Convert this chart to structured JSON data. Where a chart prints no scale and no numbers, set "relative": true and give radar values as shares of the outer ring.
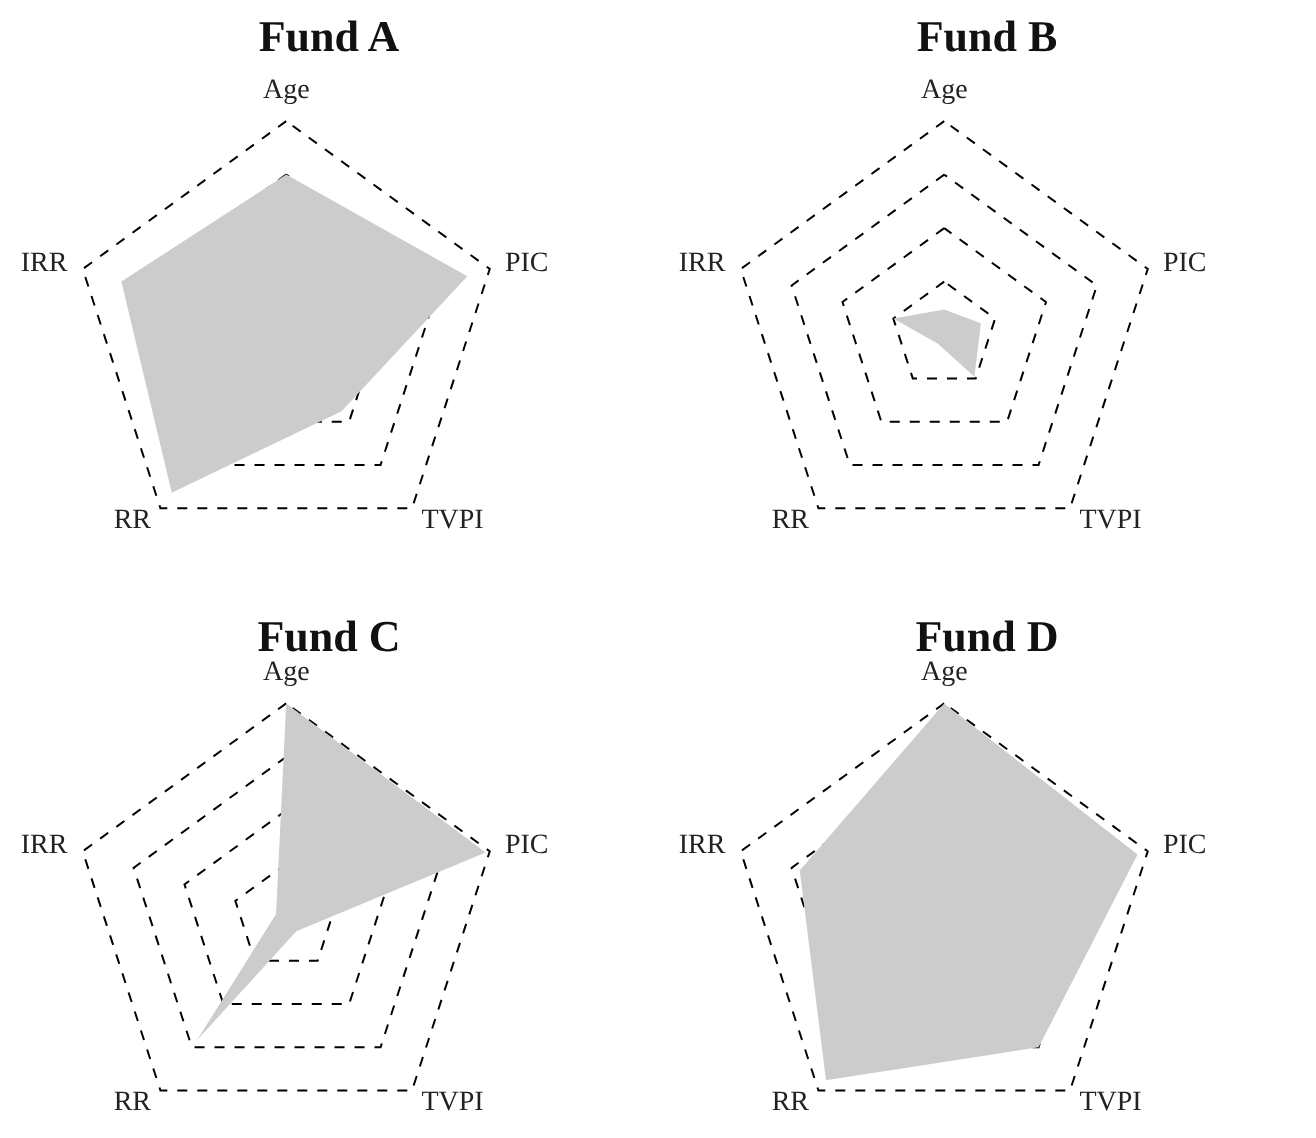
{
  "chart_data": [
    {
      "type": "radar",
      "title": "Fund A",
      "categories": [
        "Age",
        "PIC",
        "TVPI",
        "RR",
        "IRR"
      ],
      "relative": true,
      "grid": true,
      "series": [
        {
          "color": "#cccccc",
          "values": [
            0.75,
            0.89,
            0.44,
            0.91,
            0.81
          ]
        }
      ]
    },
    {
      "type": "radar",
      "title": "Fund B",
      "categories": [
        "Age",
        "PIC",
        "TVPI",
        "RR",
        "IRR"
      ],
      "relative": true,
      "grid": true,
      "series": [
        {
          "color": "#cccccc",
          "values": [
            0.12,
            0.18,
            0.24,
            0.05,
            0.25
          ]
        }
      ]
    },
    {
      "type": "radar",
      "title": "Fund C",
      "categories": [
        "Age",
        "PIC",
        "TVPI",
        "RR",
        "IRR"
      ],
      "relative": true,
      "grid": true,
      "series": [
        {
          "color": "#cccccc",
          "values": [
            1.0,
            0.98,
            0.08,
            0.71,
            0.05
          ]
        }
      ]
    },
    {
      "type": "radar",
      "title": "Fund D",
      "categories": [
        "Age",
        "PIC",
        "TVPI",
        "RR",
        "IRR"
      ],
      "relative": true,
      "grid": true,
      "series": [
        {
          "color": "#cccccc",
          "values": [
            1.0,
            0.95,
            0.75,
            0.94,
            0.71
          ]
        }
      ]
    }
  ]
}
